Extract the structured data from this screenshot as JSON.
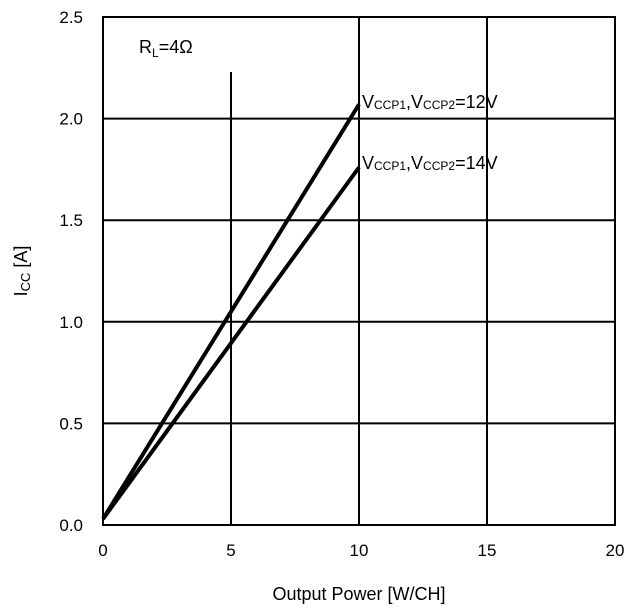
{
  "chart_data": {
    "type": "line",
    "title": "",
    "xlabel": "Output Power [W/CH]",
    "ylabel": {
      "main": "I",
      "sub": "CC",
      "rest": " [A]"
    },
    "xlim": [
      0,
      20
    ],
    "ylim": [
      0,
      2.5
    ],
    "xticks": [
      0,
      5,
      10,
      15,
      20
    ],
    "xtick_labels": [
      "0",
      "5",
      "10",
      "15",
      "20"
    ],
    "yticks": [
      0,
      0.5,
      1.0,
      1.5,
      2.0,
      2.5
    ],
    "ytick_labels": [
      "0.0",
      "0.5",
      "1.0",
      "1.5",
      "2.0",
      "2.5"
    ],
    "grid": true,
    "legend": "none",
    "condition": {
      "main": "R",
      "sub": "L",
      "rest": "=4Ω"
    },
    "series": [
      {
        "label_parts": [
          {
            "t": "V",
            "sub": false
          },
          {
            "t": "CCP1",
            "sub": true
          },
          {
            "t": ",V",
            "sub": false
          },
          {
            "t": "CCP2",
            "sub": true
          },
          {
            "t": "=12V",
            "sub": false
          }
        ],
        "x": [
          0,
          10
        ],
        "y": [
          0.03,
          2.07
        ],
        "color": "#000000"
      },
      {
        "label_parts": [
          {
            "t": "V",
            "sub": false
          },
          {
            "t": "CCP1",
            "sub": true
          },
          {
            "t": ",V",
            "sub": false
          },
          {
            "t": "CCP2",
            "sub": true
          },
          {
            "t": "=14V",
            "sub": false
          }
        ],
        "x": [
          0,
          10
        ],
        "y": [
          0.03,
          1.76
        ],
        "color": "#000000"
      }
    ]
  }
}
